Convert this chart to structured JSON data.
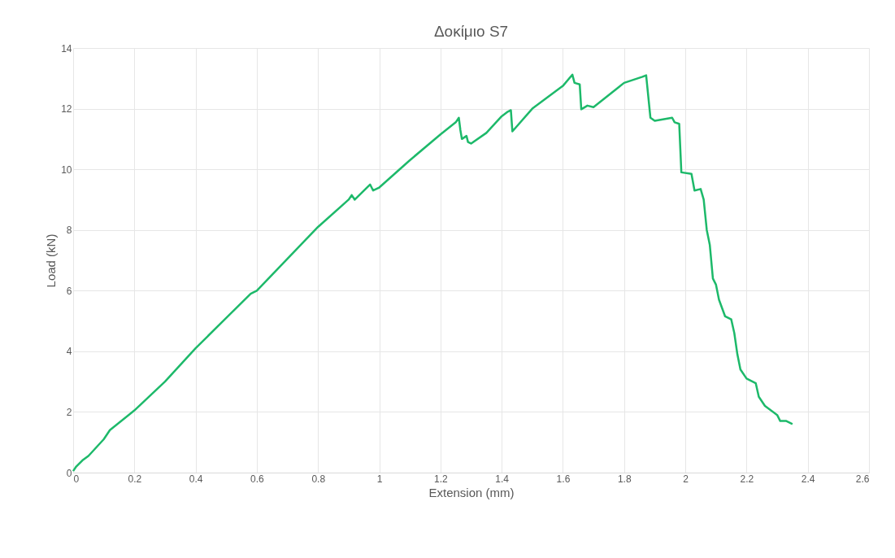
{
  "chart_data": {
    "type": "line",
    "title": "Δοκίμιο S7",
    "xlabel": "Extension (mm)",
    "ylabel": "Load (kN)",
    "x": [
      0,
      0.01,
      0.03,
      0.05,
      0.1,
      0.12,
      0.2,
      0.3,
      0.4,
      0.5,
      0.58,
      0.6,
      0.7,
      0.8,
      0.9,
      0.91,
      0.92,
      0.97,
      0.98,
      1.0,
      1.1,
      1.2,
      1.25,
      1.26,
      1.265,
      1.27,
      1.285,
      1.29,
      1.3,
      1.35,
      1.4,
      1.42,
      1.43,
      1.435,
      1.5,
      1.6,
      1.631,
      1.638,
      1.655,
      1.66,
      1.68,
      1.7,
      1.8,
      1.86,
      1.872,
      1.886,
      1.9,
      1.957,
      1.965,
      1.98,
      1.987,
      2.02,
      2.03,
      2.05,
      2.06,
      2.07,
      2.08,
      2.09,
      2.1,
      2.11,
      2.13,
      2.15,
      2.16,
      2.17,
      2.18,
      2.2,
      2.23,
      2.24,
      2.26,
      2.3,
      2.31,
      2.33,
      2.35
    ],
    "series": [
      {
        "color": "#1db96a",
        "values": [
          0.05,
          0.2,
          0.4,
          0.55,
          1.1,
          1.4,
          2.05,
          3.0,
          4.1,
          5.1,
          5.9,
          6.0,
          7.05,
          8.1,
          9.0,
          9.15,
          9.0,
          9.5,
          9.3,
          9.4,
          10.3,
          11.15,
          11.55,
          11.7,
          11.3,
          11.0,
          11.1,
          10.9,
          10.85,
          11.2,
          11.75,
          11.9,
          11.95,
          11.25,
          12.0,
          12.75,
          13.12,
          12.85,
          12.8,
          11.98,
          12.1,
          12.05,
          12.85,
          13.05,
          13.1,
          11.7,
          11.6,
          11.7,
          11.55,
          11.5,
          9.9,
          9.85,
          9.3,
          9.35,
          9.0,
          8.0,
          7.5,
          6.4,
          6.2,
          5.7,
          5.15,
          5.05,
          4.6,
          3.9,
          3.4,
          3.1,
          2.95,
          2.5,
          2.2,
          1.9,
          1.7,
          1.7,
          1.6
        ]
      }
    ],
    "xlim": [
      0,
      2.6
    ],
    "xticks": [
      0,
      0.2,
      0.4,
      0.6,
      0.8,
      1,
      1.2,
      1.4,
      1.6,
      1.8,
      2,
      2.2,
      2.4,
      2.6
    ],
    "ylim": [
      0,
      14
    ],
    "yticks": [
      0,
      2,
      4,
      6,
      8,
      10,
      12,
      14
    ],
    "grid": true,
    "legend": false,
    "marker": "none",
    "line_style": "solid"
  }
}
